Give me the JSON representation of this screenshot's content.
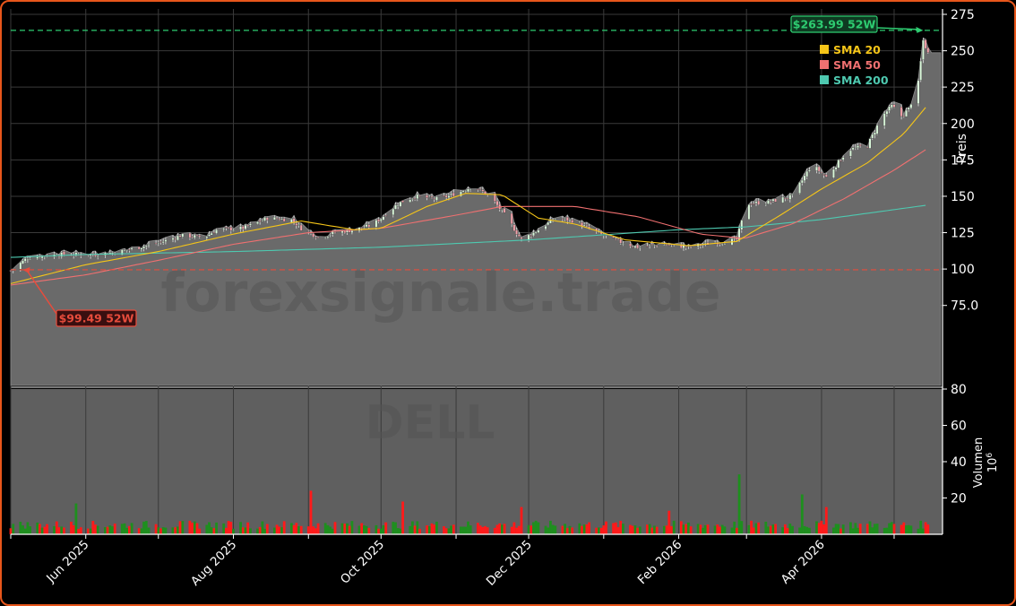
{
  "chart_data": {
    "type": "candlestick",
    "ticker_watermark": "DELL",
    "site_watermark": "forexsignale.trade",
    "price_axis": {
      "label": "Preis",
      "range": [
        20,
        275
      ],
      "ticks": [
        100,
        125,
        150,
        175,
        200,
        225,
        250,
        275
      ],
      "tick_labels": [
        "100",
        "125",
        "150",
        "175",
        "200",
        "225",
        "250",
        "275"
      ],
      "extra_tick": {
        "value": 75,
        "label": "75.0"
      }
    },
    "volume_axis": {
      "label": "Volumen",
      "multiplier": "10",
      "multiplier_exp": "6",
      "range": [
        0,
        80
      ],
      "ticks": [
        20,
        40,
        60,
        80
      ],
      "tick_labels": [
        "20",
        "40",
        "60",
        "80"
      ]
    },
    "x_axis": {
      "start": "2025-05-01",
      "end": "2026-05-21",
      "ticks": [
        {
          "date": "2025-06-01",
          "label": "Jun 2025"
        },
        {
          "date": "2025-08-01",
          "label": "Aug 2025"
        },
        {
          "date": "2025-10-01",
          "label": "Oct 2025"
        },
        {
          "date": "2025-12-01",
          "label": "Dec 2025"
        },
        {
          "date": "2026-02-01",
          "label": "Feb 2026"
        },
        {
          "date": "2026-04-01",
          "label": "Apr 2026"
        }
      ],
      "gridlines": [
        "2025-05-01",
        "2025-06-01",
        "2025-07-01",
        "2025-08-01",
        "2025-09-01",
        "2025-10-01",
        "2025-11-01",
        "2025-12-01",
        "2026-01-01",
        "2026-02-01",
        "2026-03-01",
        "2026-04-01",
        "2026-05-01"
      ]
    },
    "high_52w": {
      "value": 263.99,
      "label": "$263.99 52W",
      "date": "2026-05-13",
      "color": "#2ecc71"
    },
    "low_52w": {
      "value": 99.49,
      "label": "$99.49 52W",
      "date": "2025-05-06",
      "color": "#e74c3c"
    },
    "legend": {
      "placement": "top-right",
      "items": [
        {
          "label": "SMA 20",
          "color": "#f5c518"
        },
        {
          "label": "SMA 50",
          "color": "#f07070"
        },
        {
          "label": "SMA 200",
          "color": "#4ec9b0"
        }
      ]
    },
    "close_anchors": [
      [
        "2025-05-01",
        99
      ],
      [
        "2025-05-08",
        108
      ],
      [
        "2025-05-20",
        110
      ],
      [
        "2025-06-05",
        110
      ],
      [
        "2025-06-15",
        112
      ],
      [
        "2025-07-01",
        118
      ],
      [
        "2025-07-10",
        123
      ],
      [
        "2025-07-20",
        122
      ],
      [
        "2025-07-25",
        127
      ],
      [
        "2025-08-05",
        128
      ],
      [
        "2025-08-15",
        135
      ],
      [
        "2025-08-25",
        134
      ],
      [
        "2025-08-29",
        128
      ],
      [
        "2025-09-05",
        122
      ],
      [
        "2025-09-12",
        125
      ],
      [
        "2025-09-20",
        127
      ],
      [
        "2025-09-27",
        130
      ],
      [
        "2025-10-01",
        135
      ],
      [
        "2025-10-08",
        145
      ],
      [
        "2025-10-15",
        150
      ],
      [
        "2025-10-25",
        148
      ],
      [
        "2025-11-01",
        152
      ],
      [
        "2025-11-08",
        157
      ],
      [
        "2025-11-15",
        150
      ],
      [
        "2025-11-22",
        135
      ],
      [
        "2025-11-28",
        120
      ],
      [
        "2025-12-05",
        127
      ],
      [
        "2025-12-12",
        135
      ],
      [
        "2025-12-20",
        133
      ],
      [
        "2025-12-28",
        126
      ],
      [
        "2026-01-05",
        120
      ],
      [
        "2026-01-15",
        115
      ],
      [
        "2026-01-25",
        117
      ],
      [
        "2026-02-05",
        115
      ],
      [
        "2026-02-15",
        118
      ],
      [
        "2026-02-25",
        120
      ],
      [
        "2026-03-01",
        145
      ],
      [
        "2026-03-10",
        146
      ],
      [
        "2026-03-20",
        150
      ],
      [
        "2026-03-28",
        172
      ],
      [
        "2026-04-03",
        163
      ],
      [
        "2026-04-12",
        182
      ],
      [
        "2026-04-20",
        185
      ],
      [
        "2026-04-26",
        205
      ],
      [
        "2026-04-30",
        212
      ],
      [
        "2026-05-04",
        205
      ],
      [
        "2026-05-07",
        210
      ],
      [
        "2026-05-11",
        228
      ],
      [
        "2026-05-13",
        257
      ],
      [
        "2026-05-15",
        248
      ]
    ],
    "sma20": [
      [
        "2025-05-01",
        90
      ],
      [
        "2025-06-01",
        103
      ],
      [
        "2025-07-01",
        112
      ],
      [
        "2025-08-01",
        124
      ],
      [
        "2025-08-29",
        133
      ],
      [
        "2025-09-20",
        127
      ],
      [
        "2025-10-01",
        128
      ],
      [
        "2025-10-20",
        143
      ],
      [
        "2025-11-05",
        152
      ],
      [
        "2025-11-20",
        151
      ],
      [
        "2025-12-05",
        135
      ],
      [
        "2025-12-20",
        131
      ],
      [
        "2026-01-10",
        120
      ],
      [
        "2026-02-05",
        116
      ],
      [
        "2026-02-25",
        119
      ],
      [
        "2026-03-15",
        137
      ],
      [
        "2026-04-01",
        155
      ],
      [
        "2026-04-20",
        173
      ],
      [
        "2026-05-05",
        193
      ],
      [
        "2026-05-15",
        213
      ]
    ],
    "sma50": [
      [
        "2025-05-01",
        89
      ],
      [
        "2025-06-01",
        96
      ],
      [
        "2025-07-01",
        106
      ],
      [
        "2025-08-01",
        117
      ],
      [
        "2025-09-01",
        125
      ],
      [
        "2025-10-01",
        128
      ],
      [
        "2025-11-01",
        137
      ],
      [
        "2025-11-20",
        143
      ],
      [
        "2025-12-20",
        143
      ],
      [
        "2026-01-15",
        136
      ],
      [
        "2026-02-10",
        124
      ],
      [
        "2026-02-28",
        121
      ],
      [
        "2026-03-20",
        131
      ],
      [
        "2026-04-10",
        148
      ],
      [
        "2026-05-01",
        168
      ],
      [
        "2026-05-15",
        183
      ]
    ],
    "sma200": [
      [
        "2025-05-01",
        108
      ],
      [
        "2025-06-01",
        110
      ],
      [
        "2025-08-01",
        112
      ],
      [
        "2025-10-01",
        115
      ],
      [
        "2025-12-01",
        120
      ],
      [
        "2026-02-01",
        127
      ],
      [
        "2026-03-01",
        129
      ],
      [
        "2026-04-01",
        134
      ],
      [
        "2026-05-15",
        144
      ]
    ],
    "volume_spikes": [
      [
        "2025-05-28",
        17
      ],
      [
        "2025-09-02",
        24
      ],
      [
        "2025-10-10",
        18
      ],
      [
        "2025-11-28",
        15
      ],
      [
        "2026-01-28",
        13
      ],
      [
        "2026-02-26",
        33
      ],
      [
        "2026-03-24",
        22
      ],
      [
        "2026-04-03",
        15
      ]
    ]
  }
}
